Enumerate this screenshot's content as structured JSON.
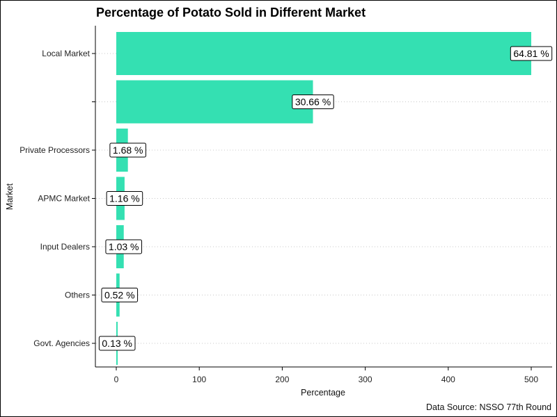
{
  "chart_data": {
    "type": "bar",
    "orientation": "horizontal",
    "title": "Percentage of Potato Sold in Different Market",
    "xlabel": "Percentage",
    "ylabel": "Market",
    "caption": "Data Source: NSSO 77th Round",
    "xlim": [
      -25,
      525
    ],
    "x_ticks": [
      0,
      100,
      200,
      300,
      400,
      500
    ],
    "categories": [
      "Local Market",
      "",
      "Private Processors",
      "APMC Market",
      "Input Dealers",
      "Others",
      "Govt. Agencies"
    ],
    "values": [
      500,
      237,
      14,
      10,
      9,
      4,
      1
    ],
    "data_labels": [
      "64.81 %",
      "30.66 %",
      "1.68 %",
      "1.16 %",
      "1.03 %",
      "0.52 %",
      "0.13 %"
    ],
    "label_x": [
      500,
      237,
      14,
      10,
      9,
      4,
      1
    ],
    "bar_color": "#34E0B2",
    "grid": "horizontal dotted",
    "legend": "none"
  }
}
